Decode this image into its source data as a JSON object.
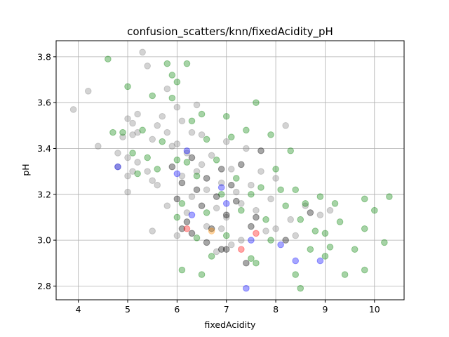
{
  "chart_data": {
    "type": "scatter",
    "title": "confusion_scatters/knn/fixedAcidity_pH",
    "xlabel": "fixedAcidity",
    "ylabel": "pH",
    "xlim": [
      3.55,
      10.6
    ],
    "ylim": [
      2.74,
      3.87
    ],
    "xticks": [
      "4",
      "5",
      "6",
      "7",
      "8",
      "9",
      "10"
    ],
    "yticks": [
      "2.8",
      "3.0",
      "3.2",
      "3.4",
      "3.6",
      "3.8"
    ],
    "grid": true,
    "marker_alpha": 0.35,
    "series": [
      {
        "color": "#808080",
        "points": [
          [
            3.9,
            3.57
          ],
          [
            4.2,
            3.65
          ],
          [
            4.4,
            3.41
          ],
          [
            4.8,
            3.38
          ],
          [
            4.8,
            3.32
          ],
          [
            4.9,
            3.45
          ],
          [
            5.0,
            3.53
          ],
          [
            5.0,
            3.36
          ],
          [
            5.0,
            3.28
          ],
          [
            5.0,
            3.21
          ],
          [
            5.1,
            3.51
          ],
          [
            5.1,
            3.46
          ],
          [
            5.1,
            3.3
          ],
          [
            5.2,
            3.55
          ],
          [
            5.2,
            3.47
          ],
          [
            5.2,
            3.34
          ],
          [
            5.3,
            3.82
          ],
          [
            5.4,
            3.76
          ],
          [
            5.4,
            3.3
          ],
          [
            5.5,
            3.44
          ],
          [
            5.5,
            3.26
          ],
          [
            5.6,
            3.5
          ],
          [
            5.6,
            3.24
          ],
          [
            5.7,
            3.54
          ],
          [
            5.8,
            3.66
          ],
          [
            5.8,
            3.47
          ],
          [
            5.9,
            3.41
          ],
          [
            6.0,
            3.58
          ],
          [
            6.0,
            3.42
          ],
          [
            6.1,
            3.52
          ],
          [
            6.1,
            3.28
          ],
          [
            6.2,
            3.38
          ],
          [
            6.3,
            3.47
          ],
          [
            6.3,
            3.19
          ],
          [
            6.4,
            3.59
          ],
          [
            6.4,
            3.3
          ],
          [
            6.5,
            3.46
          ],
          [
            6.6,
            3.22
          ],
          [
            6.6,
            3.06
          ],
          [
            6.7,
            3.37
          ],
          [
            6.8,
            3.14
          ],
          [
            6.8,
            2.95
          ],
          [
            6.9,
            3.25
          ],
          [
            7.0,
            3.43
          ],
          [
            7.0,
            3.1
          ],
          [
            7.1,
            3.31
          ],
          [
            7.2,
            3.21
          ],
          [
            7.3,
            3.0
          ],
          [
            7.4,
            3.4
          ],
          [
            7.5,
            3.24
          ],
          [
            7.6,
            3.13
          ],
          [
            7.7,
            3.3
          ],
          [
            7.8,
            3.04
          ],
          [
            7.9,
            3.18
          ],
          [
            8.0,
            3.27
          ],
          [
            8.0,
            3.05
          ],
          [
            8.2,
            3.5
          ],
          [
            8.3,
            3.09
          ],
          [
            8.4,
            3.02
          ],
          [
            8.6,
            3.15
          ],
          [
            8.9,
            3.11
          ],
          [
            9.1,
            3.13
          ],
          [
            6.0,
            3.02
          ],
          [
            5.5,
            3.04
          ],
          [
            6.2,
            3.12
          ],
          [
            6.5,
            3.33
          ],
          [
            7.1,
            2.98
          ],
          [
            7.3,
            3.16
          ],
          [
            5.8,
            3.15
          ],
          [
            6.9,
            3.05
          ]
        ]
      },
      {
        "color": "#008000",
        "points": [
          [
            4.6,
            3.79
          ],
          [
            4.7,
            3.47
          ],
          [
            4.9,
            3.47
          ],
          [
            5.0,
            3.67
          ],
          [
            5.1,
            3.38
          ],
          [
            5.2,
            3.29
          ],
          [
            5.3,
            3.48
          ],
          [
            5.4,
            3.36
          ],
          [
            5.5,
            3.63
          ],
          [
            5.6,
            3.31
          ],
          [
            5.7,
            3.43
          ],
          [
            5.8,
            3.77
          ],
          [
            5.9,
            3.72
          ],
          [
            5.9,
            3.62
          ],
          [
            6.0,
            3.69
          ],
          [
            6.0,
            3.35
          ],
          [
            6.0,
            3.1
          ],
          [
            6.1,
            3.16
          ],
          [
            6.2,
            3.77
          ],
          [
            6.2,
            3.34
          ],
          [
            6.3,
            3.52
          ],
          [
            6.4,
            3.28
          ],
          [
            6.4,
            3.01
          ],
          [
            6.5,
            3.55
          ],
          [
            6.6,
            3.44
          ],
          [
            6.6,
            3.12
          ],
          [
            6.7,
            2.93
          ],
          [
            6.8,
            3.35
          ],
          [
            6.9,
            3.2
          ],
          [
            7.0,
            3.54
          ],
          [
            7.0,
            3.02
          ],
          [
            7.1,
            3.45
          ],
          [
            7.2,
            3.27
          ],
          [
            7.3,
            3.13
          ],
          [
            7.4,
            3.48
          ],
          [
            7.5,
            3.2
          ],
          [
            7.5,
            2.92
          ],
          [
            7.6,
            3.6
          ],
          [
            7.7,
            3.23
          ],
          [
            7.8,
            3.09
          ],
          [
            7.9,
            3.46
          ],
          [
            8.0,
            3.31
          ],
          [
            8.1,
            3.22
          ],
          [
            8.2,
            3.15
          ],
          [
            8.3,
            3.39
          ],
          [
            8.4,
            3.22
          ],
          [
            8.5,
            3.09
          ],
          [
            8.5,
            2.79
          ],
          [
            8.6,
            3.16
          ],
          [
            8.7,
            2.96
          ],
          [
            8.8,
            3.04
          ],
          [
            8.9,
            3.19
          ],
          [
            9.0,
            3.03
          ],
          [
            9.1,
            2.97
          ],
          [
            9.2,
            3.16
          ],
          [
            9.3,
            3.08
          ],
          [
            9.4,
            2.85
          ],
          [
            9.6,
            2.96
          ],
          [
            9.8,
            3.18
          ],
          [
            9.8,
            3.05
          ],
          [
            9.8,
            2.87
          ],
          [
            10.2,
            2.99
          ],
          [
            10.3,
            3.19
          ],
          [
            6.1,
            2.87
          ],
          [
            6.5,
            2.85
          ],
          [
            7.6,
            2.9
          ],
          [
            7.9,
            3.0
          ],
          [
            8.4,
            2.85
          ],
          [
            9.0,
            2.93
          ],
          [
            10.0,
            3.13
          ]
        ]
      },
      {
        "color": "#000000",
        "points": [
          [
            5.9,
            3.32
          ],
          [
            6.0,
            3.18
          ],
          [
            6.1,
            3.25
          ],
          [
            6.2,
            3.08
          ],
          [
            6.3,
            3.36
          ],
          [
            6.4,
            3.22
          ],
          [
            6.5,
            3.15
          ],
          [
            6.6,
            3.27
          ],
          [
            6.7,
            3.05
          ],
          [
            6.8,
            3.19
          ],
          [
            6.9,
            3.31
          ],
          [
            7.0,
            3.11
          ],
          [
            7.1,
            3.24
          ],
          [
            7.2,
            3.17
          ],
          [
            7.3,
            3.33
          ],
          [
            7.4,
            2.9
          ],
          [
            7.5,
            3.06
          ],
          [
            7.0,
            2.96
          ],
          [
            6.9,
            2.96
          ],
          [
            8.2,
            3.0
          ],
          [
            8.7,
            3.12
          ],
          [
            7.7,
            3.39
          ],
          [
            6.3,
            3.03
          ],
          [
            6.6,
            2.99
          ],
          [
            7.6,
            3.1
          ],
          [
            6.1,
            3.05
          ]
        ]
      },
      {
        "color": "#0000ff",
        "points": [
          [
            4.8,
            3.32
          ],
          [
            6.0,
            3.29
          ],
          [
            6.2,
            3.39
          ],
          [
            6.9,
            3.23
          ],
          [
            7.0,
            3.16
          ],
          [
            7.4,
            2.79
          ],
          [
            7.5,
            3.0
          ],
          [
            8.1,
            2.98
          ],
          [
            8.4,
            2.91
          ],
          [
            8.9,
            2.91
          ],
          [
            6.3,
            3.11
          ]
        ]
      },
      {
        "color": "#ff0000",
        "points": [
          [
            6.2,
            3.05
          ],
          [
            7.3,
            2.96
          ],
          [
            7.6,
            3.03
          ]
        ]
      },
      {
        "color": "#ff8c00",
        "points": [
          [
            6.7,
            3.04
          ]
        ]
      }
    ]
  }
}
